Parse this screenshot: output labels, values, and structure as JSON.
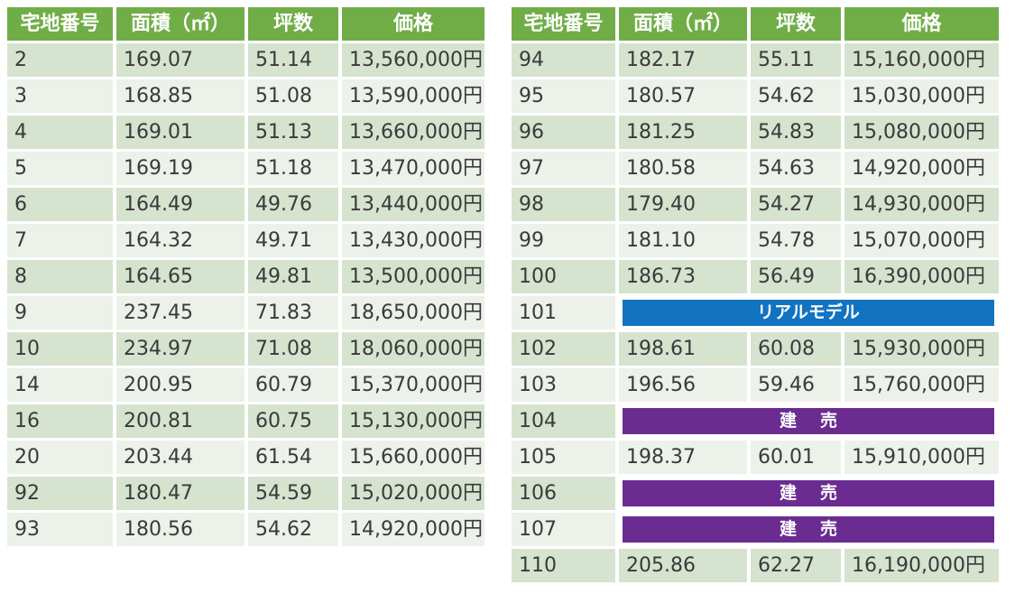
{
  "headers": [
    "宅地番号",
    "面積（㎡）",
    "坪数",
    "価格"
  ],
  "left_rows": [
    {
      "lot": "2",
      "area": "169.07",
      "tsubo": "51.14",
      "price": "13,560,000円"
    },
    {
      "lot": "3",
      "area": "168.85",
      "tsubo": "51.08",
      "price": "13,590,000円"
    },
    {
      "lot": "4",
      "area": "169.01",
      "tsubo": "51.13",
      "price": "13,660,000円"
    },
    {
      "lot": "5",
      "area": "169.19",
      "tsubo": "51.18",
      "price": "13,470,000円"
    },
    {
      "lot": "6",
      "area": "164.49",
      "tsubo": "49.76",
      "price": "13,440,000円"
    },
    {
      "lot": "7",
      "area": "164.32",
      "tsubo": "49.71",
      "price": "13,430,000円"
    },
    {
      "lot": "8",
      "area": "164.65",
      "tsubo": "49.81",
      "price": "13,500,000円"
    },
    {
      "lot": "9",
      "area": "237.45",
      "tsubo": "71.83",
      "price": "18,650,000円"
    },
    {
      "lot": "10",
      "area": "234.97",
      "tsubo": "71.08",
      "price": "18,060,000円"
    },
    {
      "lot": "14",
      "area": "200.95",
      "tsubo": "60.79",
      "price": "15,370,000円"
    },
    {
      "lot": "16",
      "area": "200.81",
      "tsubo": "60.75",
      "price": "15,130,000円"
    },
    {
      "lot": "20",
      "area": "203.44",
      "tsubo": "61.54",
      "price": "15,660,000円"
    },
    {
      "lot": "92",
      "area": "180.47",
      "tsubo": "54.59",
      "price": "15,020,000円"
    },
    {
      "lot": "93",
      "area": "180.56",
      "tsubo": "54.62",
      "price": "14,920,000円"
    }
  ],
  "right_rows": [
    {
      "lot": "94",
      "area": "182.17",
      "tsubo": "55.11",
      "price": "15,160,000円"
    },
    {
      "lot": "95",
      "area": "180.57",
      "tsubo": "54.62",
      "price": "15,030,000円"
    },
    {
      "lot": "96",
      "area": "181.25",
      "tsubo": "54.83",
      "price": "15,080,000円"
    },
    {
      "lot": "97",
      "area": "180.58",
      "tsubo": "54.63",
      "price": "14,920,000円"
    },
    {
      "lot": "98",
      "area": "179.40",
      "tsubo": "54.27",
      "price": "14,930,000円"
    },
    {
      "lot": "99",
      "area": "181.10",
      "tsubo": "54.78",
      "price": "15,070,000円"
    },
    {
      "lot": "100",
      "area": "186.73",
      "tsubo": "56.49",
      "price": "16,390,000円"
    },
    {
      "lot": "101",
      "banner": "リアルモデル",
      "banner_type": "model"
    },
    {
      "lot": "102",
      "area": "198.61",
      "tsubo": "60.08",
      "price": "15,930,000円"
    },
    {
      "lot": "103",
      "area": "196.56",
      "tsubo": "59.46",
      "price": "15,760,000円"
    },
    {
      "lot": "104",
      "banner": "建売",
      "banner_type": "sold"
    },
    {
      "lot": "105",
      "area": "198.37",
      "tsubo": "60.01",
      "price": "15,910,000円"
    },
    {
      "lot": "106",
      "banner": "建売",
      "banner_type": "sold"
    },
    {
      "lot": "107",
      "banner": "建売",
      "banner_type": "sold"
    },
    {
      "lot": "110",
      "area": "205.86",
      "tsubo": "62.27",
      "price": "16,190,000円"
    }
  ],
  "colors": {
    "header": "#70ad47",
    "row_dark": "#d6e3cf",
    "row_light": "#ecf1e9",
    "model_banner": "#1273c0",
    "sold_banner": "#6a2c91"
  }
}
